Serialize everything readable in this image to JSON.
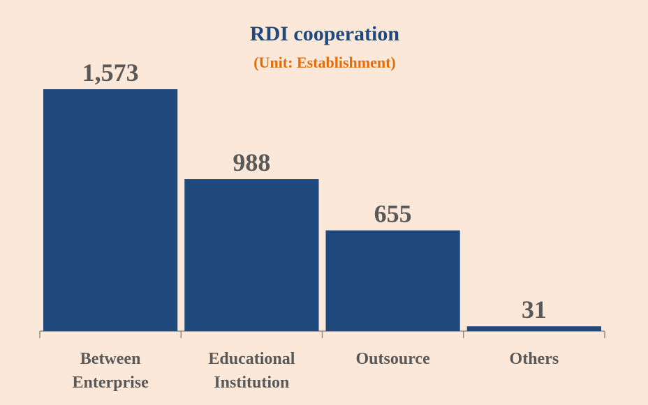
{
  "chart_data": {
    "type": "bar",
    "title": "RDI cooperation",
    "subtitle": "(Unit: Establishment)",
    "categories": [
      "Between Enterprise",
      "Educational Institution",
      "Outsource",
      "Others"
    ],
    "values": [
      1573,
      988,
      655,
      31
    ],
    "value_labels": [
      "1,573",
      "988",
      "655",
      "31"
    ],
    "color": "#1f497d"
  }
}
